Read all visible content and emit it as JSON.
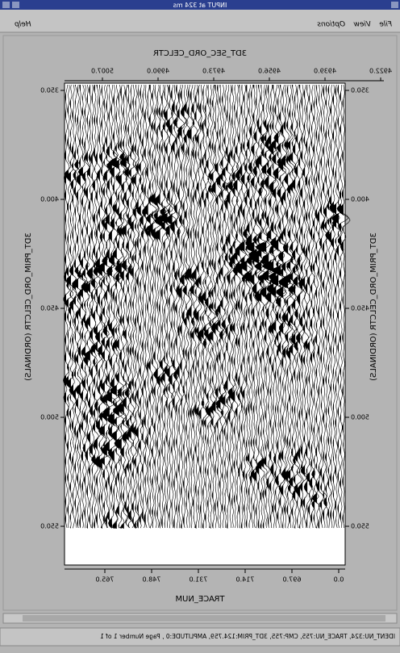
{
  "window": {
    "title": "INPUT at 324 ms"
  },
  "menu": {
    "items": [
      "File",
      "View",
      "Options"
    ],
    "help": "Help"
  },
  "plot": {
    "top_axis": {
      "title": "3DT_SEC_ORD_CELCTR",
      "ticks": [
        "4922.0",
        "4939.0",
        "4956.0",
        "4973.0",
        "4990.0",
        "5007.0"
      ]
    },
    "side_axis": {
      "title": "3DT_PRIM_ORD_CELCTR (ORDINALS)",
      "ticks": [
        "350.0",
        "400.0",
        "450.0",
        "500.0",
        "550.0"
      ]
    },
    "bottom_axis": {
      "title": "TRACE_NUM",
      "ticks": [
        "0.0",
        "697.0",
        "714.0",
        "731.0",
        "748.0",
        "765.0"
      ]
    }
  },
  "status": "IDENT_NU:324, TRACE_NU:755, CMP:755, 3DT_PRIM:124.759, AMPLITUDE:0 , Page Number 1 of 1"
}
